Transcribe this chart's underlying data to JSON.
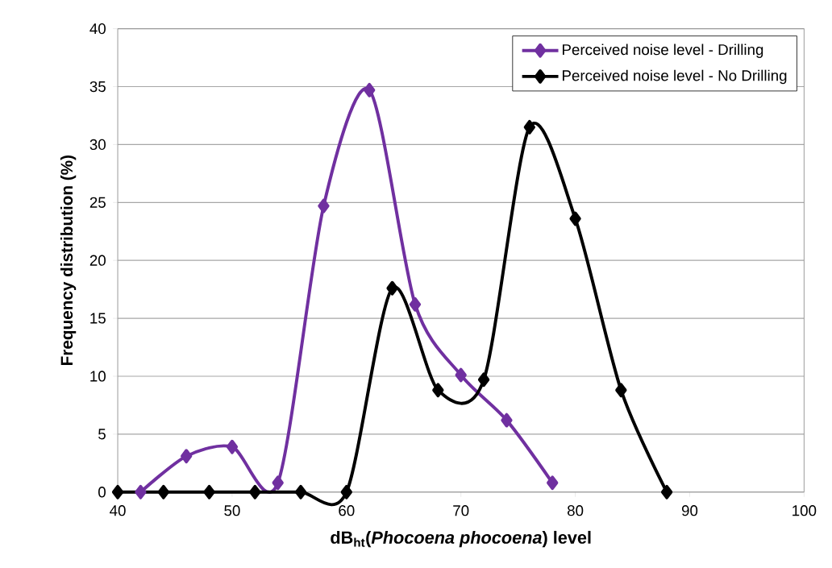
{
  "chart_data": {
    "type": "line",
    "xlabel": "dB$_{ht}$(*Phocoena phocoena*) level",
    "ylabel": "Frequency distribution (%)",
    "xlim": [
      40,
      100
    ],
    "xticks": [
      40,
      50,
      60,
      70,
      80,
      90,
      100
    ],
    "ylim": [
      0,
      40
    ],
    "yticks": [
      0,
      5,
      10,
      15,
      20,
      25,
      30,
      35,
      40
    ],
    "grid": "y",
    "legend": "top right",
    "marker": "diamond",
    "series": [
      {
        "name": "Perceived noise level - Drilling",
        "color": "#7030a0",
        "x": [
          42,
          46,
          50,
          54,
          58,
          62,
          66,
          70,
          74,
          78
        ],
        "values": [
          0,
          3.1,
          3.9,
          0.8,
          24.7,
          34.7,
          16.2,
          10.1,
          6.2,
          0.8
        ]
      },
      {
        "name": "Perceived noise level - No Drilling",
        "color": "#000000",
        "x": [
          40,
          44,
          48,
          52,
          56,
          60,
          64,
          68,
          72,
          76,
          80,
          84,
          88
        ],
        "values": [
          0,
          0,
          0,
          0,
          0,
          0,
          17.6,
          8.8,
          9.7,
          31.5,
          23.6,
          8.8,
          0
        ]
      }
    ]
  }
}
